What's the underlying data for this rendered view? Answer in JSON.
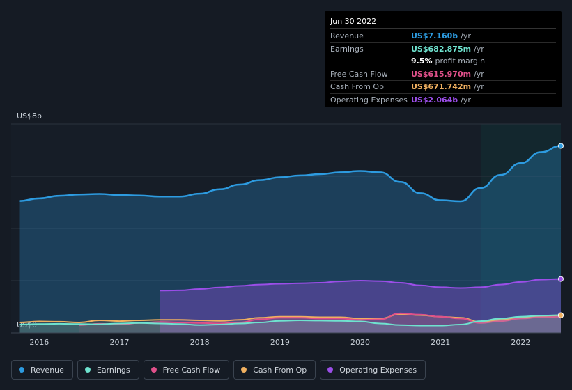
{
  "tooltip": {
    "date": "Jun 30 2022",
    "rows": [
      {
        "label": "Revenue",
        "value": "US$7.160b",
        "unit": "/yr",
        "color": "#2d9be0"
      },
      {
        "label": "Earnings",
        "value": "US$682.875m",
        "unit": "/yr",
        "color": "#6fe3cf"
      },
      {
        "label": "",
        "value": "9.5%",
        "unit": "profit margin",
        "color": "#ffffff"
      },
      {
        "label": "Free Cash Flow",
        "value": "US$615.970m",
        "unit": "/yr",
        "color": "#e0508a"
      },
      {
        "label": "Cash From Op",
        "value": "US$671.742m",
        "unit": "/yr",
        "color": "#f0b060"
      },
      {
        "label": "Operating Expenses",
        "value": "US$2.064b",
        "unit": "/yr",
        "color": "#9b4ee8"
      }
    ]
  },
  "legend": [
    {
      "label": "Revenue",
      "color": "#2d9be0"
    },
    {
      "label": "Earnings",
      "color": "#6fe3cf"
    },
    {
      "label": "Free Cash Flow",
      "color": "#e0508a"
    },
    {
      "label": "Cash From Op",
      "color": "#f0b060"
    },
    {
      "label": "Operating Expenses",
      "color": "#9b4ee8"
    }
  ],
  "chart_data": {
    "type": "area",
    "y_top_label": "US$8b",
    "y_bottom_label": "US$0",
    "ylim": [
      0,
      8
    ],
    "xlim": [
      2015.65,
      2022.5
    ],
    "x_ticks": [
      "2016",
      "2017",
      "2018",
      "2019",
      "2020",
      "2021",
      "2022"
    ],
    "x_tick_values": [
      2016,
      2017,
      2018,
      2019,
      2020,
      2021,
      2022
    ],
    "forecast_shade_start": 2021.5,
    "grid": true,
    "legend_position": "bottom",
    "series": [
      {
        "name": "Revenue",
        "color": "#2d9be0",
        "x": [
          2015.75,
          2016.0,
          2016.25,
          2016.5,
          2016.75,
          2017.0,
          2017.25,
          2017.5,
          2017.75,
          2018.0,
          2018.25,
          2018.5,
          2018.75,
          2019.0,
          2019.25,
          2019.5,
          2019.75,
          2020.0,
          2020.25,
          2020.5,
          2020.75,
          2021.0,
          2021.25,
          2021.5,
          2021.75,
          2022.0,
          2022.25,
          2022.5
        ],
        "values": [
          5.05,
          5.15,
          5.25,
          5.3,
          5.32,
          5.28,
          5.26,
          5.22,
          5.22,
          5.33,
          5.5,
          5.68,
          5.85,
          5.96,
          6.03,
          6.08,
          6.15,
          6.2,
          6.15,
          5.78,
          5.35,
          5.08,
          5.04,
          5.55,
          6.05,
          6.5,
          6.92,
          7.16
        ]
      },
      {
        "name": "Earnings",
        "color": "#6fe3cf",
        "x": [
          2015.75,
          2016.0,
          2016.25,
          2016.5,
          2016.75,
          2017.0,
          2017.25,
          2017.5,
          2017.75,
          2018.0,
          2018.25,
          2018.5,
          2018.75,
          2019.0,
          2019.25,
          2019.5,
          2019.75,
          2020.0,
          2020.25,
          2020.5,
          2020.75,
          2021.0,
          2021.25,
          2021.5,
          2021.75,
          2022.0,
          2022.25,
          2022.5
        ],
        "values": [
          0.32,
          0.34,
          0.35,
          0.34,
          0.33,
          0.36,
          0.38,
          0.36,
          0.34,
          0.3,
          0.32,
          0.36,
          0.4,
          0.46,
          0.48,
          0.47,
          0.46,
          0.44,
          0.36,
          0.3,
          0.28,
          0.28,
          0.32,
          0.45,
          0.55,
          0.62,
          0.66,
          0.68
        ]
      },
      {
        "name": "Free Cash Flow",
        "color": "#e0508a",
        "x": [
          2016.5,
          2016.75,
          2017.0,
          2017.25,
          2017.5,
          2017.75,
          2018.0,
          2018.25,
          2018.5,
          2018.75,
          2019.0,
          2019.25,
          2019.5,
          2019.75,
          2020.0,
          2020.25,
          2020.5,
          2020.75,
          2021.0,
          2021.25,
          2021.5,
          2021.75,
          2022.0,
          2022.25,
          2022.5
        ],
        "values": [
          0.3,
          0.35,
          0.32,
          0.38,
          0.42,
          0.4,
          0.38,
          0.36,
          0.4,
          0.52,
          0.58,
          0.58,
          0.55,
          0.55,
          0.5,
          0.52,
          0.75,
          0.7,
          0.62,
          0.55,
          0.38,
          0.45,
          0.55,
          0.6,
          0.62
        ]
      },
      {
        "name": "Cash From Op",
        "color": "#f0b060",
        "x": [
          2015.75,
          2016.0,
          2016.25,
          2016.5,
          2016.75,
          2017.0,
          2017.25,
          2017.5,
          2017.75,
          2018.0,
          2018.25,
          2018.5,
          2018.75,
          2019.0,
          2019.25,
          2019.5,
          2019.75,
          2020.0,
          2020.25,
          2020.5,
          2020.75,
          2021.0,
          2021.25,
          2021.5,
          2021.75,
          2022.0,
          2022.25,
          2022.5
        ],
        "values": [
          0.4,
          0.44,
          0.43,
          0.4,
          0.48,
          0.45,
          0.48,
          0.5,
          0.5,
          0.48,
          0.46,
          0.5,
          0.58,
          0.62,
          0.62,
          0.6,
          0.6,
          0.55,
          0.55,
          0.72,
          0.68,
          0.62,
          0.58,
          0.42,
          0.5,
          0.58,
          0.64,
          0.67
        ]
      },
      {
        "name": "Operating Expenses",
        "color": "#9b4ee8",
        "x": [
          2017.5,
          2017.75,
          2018.0,
          2018.25,
          2018.5,
          2018.75,
          2019.0,
          2019.25,
          2019.5,
          2019.75,
          2020.0,
          2020.25,
          2020.5,
          2020.75,
          2021.0,
          2021.25,
          2021.5,
          2021.75,
          2022.0,
          2022.25,
          2022.5
        ],
        "values": [
          1.62,
          1.63,
          1.68,
          1.74,
          1.8,
          1.85,
          1.88,
          1.9,
          1.92,
          1.97,
          2.0,
          1.98,
          1.92,
          1.82,
          1.75,
          1.72,
          1.75,
          1.85,
          1.95,
          2.04,
          2.064
        ]
      }
    ]
  }
}
